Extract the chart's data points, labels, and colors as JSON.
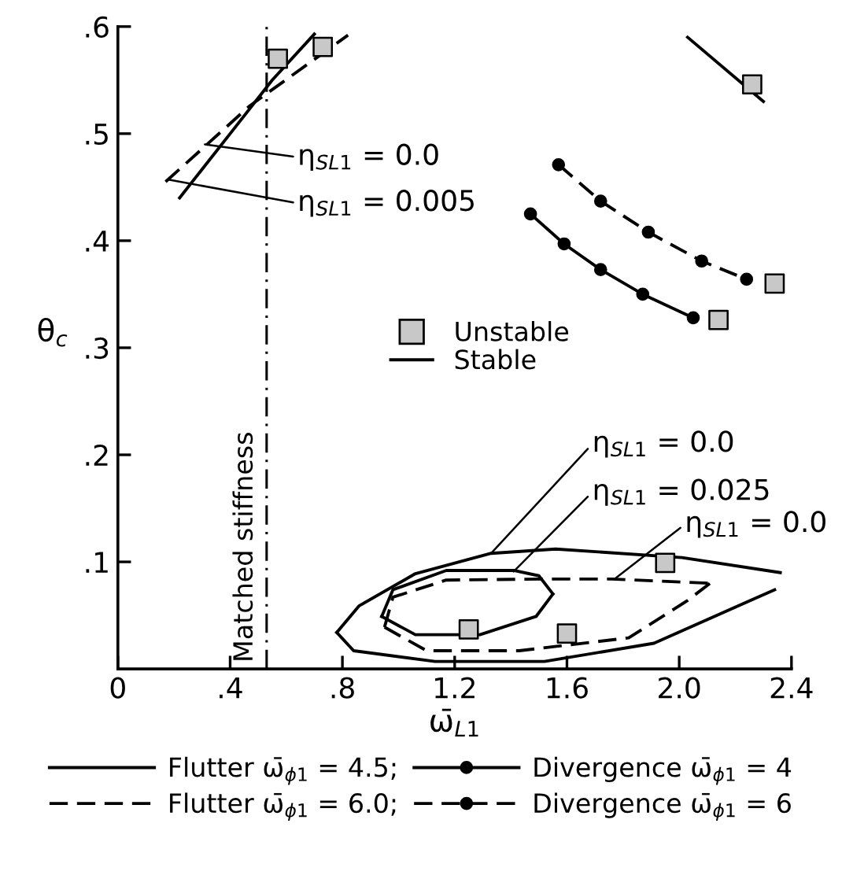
{
  "chart_data": {
    "type": "line",
    "xlabel": "ω̄$_{L1}$",
    "ylabel": "θ$_{c}$",
    "xlim": [
      0,
      2.4
    ],
    "ylim": [
      0,
      0.6
    ],
    "xticks": [
      0,
      {
        "value": 0.4,
        "label": ".4"
      },
      {
        "value": 0.8,
        "label": ".8"
      },
      1.2,
      1.6,
      {
        "value": 2.0,
        "label": "2.0"
      },
      2.4
    ],
    "yticks": [
      {
        "value": 0.1,
        "label": ".1"
      },
      {
        "value": 0.2,
        "label": ".2"
      },
      {
        "value": 0.3,
        "label": ".3"
      },
      {
        "value": 0.4,
        "label": ".4"
      },
      {
        "value": 0.5,
        "label": ".5"
      },
      {
        "value": 0.6,
        "label": ".6"
      }
    ],
    "grid": false,
    "legend": "bottom",
    "series": [
      {
        "name": "Flutter ω̄$_{ϕ1}$ = 4.5;",
        "line_style": "solid",
        "marker": "none",
        "color": "#000000",
        "x": [
          0.22,
          0.4,
          0.55,
          0.7
        ],
        "values": [
          0.44,
          0.5,
          0.55,
          0.593
        ]
      },
      {
        "name": "Flutter ω̄$_{ϕ1}$ = 6.0;",
        "line_style": "dashed",
        "marker": "none",
        "color": "#000000",
        "x": [
          0.17,
          0.47,
          0.82
        ],
        "values": [
          0.455,
          0.526,
          0.592
        ]
      },
      {
        "name": "Divergence ω̄$_{ϕ1}$ = 4",
        "line_style": "solid",
        "marker": "circle",
        "color": "#000000",
        "x": [
          1.47,
          1.59,
          1.72,
          1.87,
          2.05
        ],
        "values": [
          0.425,
          0.397,
          0.373,
          0.35,
          0.328
        ]
      },
      {
        "name": "Divergence ω̄$_{ϕ1}$ = 6",
        "line_style": "dashed",
        "marker": "circle",
        "color": "#000000",
        "x": [
          1.57,
          1.72,
          1.89,
          2.08,
          2.24
        ],
        "values": [
          0.471,
          0.437,
          0.408,
          0.381,
          0.364
        ]
      },
      {
        "line_style": "solid",
        "marker": "none",
        "color": "#000000",
        "x": [
          2.03,
          2.3
        ],
        "values": [
          0.59,
          0.53
        ]
      },
      {
        "line_style": "solid",
        "marker": "none",
        "color": "#000000",
        "x": [
          0.78,
          0.86,
          1.06,
          1.33,
          1.56,
          2.01,
          2.36
        ],
        "values": [
          0.034,
          0.059,
          0.089,
          0.108,
          0.112,
          0.104,
          0.09
        ]
      },
      {
        "line_style": "solid",
        "marker": "none",
        "color": "#000000",
        "x": [
          0.78,
          0.84,
          1.13,
          1.52,
          1.91,
          2.34
        ],
        "values": [
          0.034,
          0.017,
          0.007,
          0.007,
          0.024,
          0.074
        ]
      },
      {
        "line_style": "solid",
        "marker": "none",
        "color": "#000000",
        "x": [
          0.94,
          0.98,
          1.17,
          1.41,
          1.5,
          1.55
        ],
        "values": [
          0.049,
          0.074,
          0.092,
          0.092,
          0.087,
          0.07
        ]
      },
      {
        "line_style": "solid",
        "marker": "none",
        "color": "#000000",
        "x": [
          0.94,
          1.06,
          1.29,
          1.49,
          1.55
        ],
        "values": [
          0.049,
          0.032,
          0.032,
          0.049,
          0.07
        ]
      },
      {
        "line_style": "dashed",
        "marker": "none",
        "color": "#000000",
        "x": [
          0.95,
          0.98,
          1.17,
          1.52,
          1.76,
          2.11
        ],
        "values": [
          0.039,
          0.067,
          0.083,
          0.084,
          0.084,
          0.08
        ]
      },
      {
        "line_style": "dashed",
        "marker": "none",
        "color": "#000000",
        "x": [
          0.95,
          1.1,
          1.43,
          1.82,
          2.03,
          2.11
        ],
        "values": [
          0.039,
          0.017,
          0.017,
          0.029,
          0.064,
          0.08
        ]
      },
      {
        "name": "Unstable",
        "type": "scatter",
        "marker": "square",
        "color": "#c8c8c8",
        "x": [
          0.57,
          0.73,
          2.26,
          2.14,
          2.34,
          1.95,
          1.25,
          1.6
        ],
        "values": [
          0.57,
          0.581,
          0.546,
          0.326,
          0.36,
          0.099,
          0.037,
          0.033
        ]
      }
    ],
    "ref_lines": [
      {
        "axis": "x",
        "value": 0.53,
        "label": "Matched stiffness",
        "line_style": "dashdot",
        "color": "#000000"
      }
    ],
    "annotations": [
      {
        "text": "η$_{SL1}$ = 0.0",
        "x": 0.31,
        "y": 0.49
      },
      {
        "text": "η$_{SL1}$ = 0.005",
        "x": 0.18,
        "y": 0.457
      },
      {
        "text": "η$_{SL1}$ = 0.0",
        "x": 1.33,
        "y": 0.108
      },
      {
        "text": "η$_{SL1}$ = 0.025",
        "x": 1.41,
        "y": 0.091
      },
      {
        "text": "η$_{SL1}$ = 0.0",
        "x": 1.77,
        "y": 0.084
      },
      "Stable"
    ]
  }
}
